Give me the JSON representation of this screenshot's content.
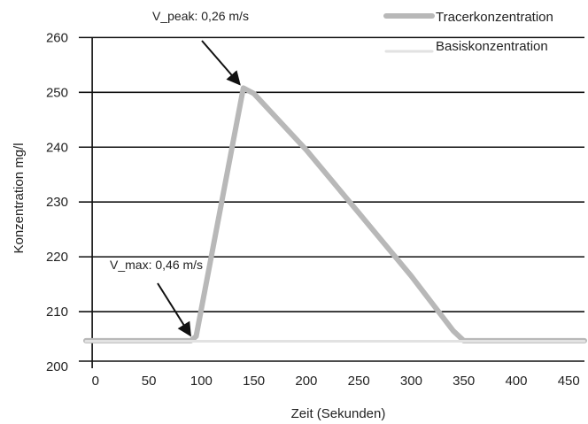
{
  "chart_data": {
    "type": "line",
    "title": "",
    "xlabel": "Zeit (Sekunden)",
    "ylabel": "Konzentration mg/l",
    "xlim": [
      -10,
      465
    ],
    "ylim": [
      200,
      262
    ],
    "x_ticks": [
      0,
      50,
      100,
      150,
      200,
      250,
      300,
      350,
      400,
      450
    ],
    "y_ticks": [
      200,
      210,
      220,
      230,
      240,
      250,
      260
    ],
    "grid": true,
    "legend_position": "top-right",
    "series": [
      {
        "name": "Tracerkonzentration",
        "color": "#b8b8b8",
        "points": [
          [
            -10,
            204.7
          ],
          [
            90,
            204.7
          ],
          [
            95,
            205.5
          ],
          [
            140,
            250.8
          ],
          [
            150,
            249.8
          ],
          [
            200,
            239.5
          ],
          [
            250,
            228
          ],
          [
            300,
            216.5
          ],
          [
            340,
            206.5
          ],
          [
            350,
            204.7
          ],
          [
            465,
            204.7
          ]
        ]
      },
      {
        "name": "Basiskonzentration",
        "color": "#e2e2e2",
        "points": [
          [
            -10,
            204.6
          ],
          [
            465,
            204.6
          ]
        ]
      }
    ],
    "annotations": [
      {
        "text": "V_peak: 0,26 m/s",
        "target": [
          140,
          250.8
        ]
      },
      {
        "text": "V_max: 0,46 m/s",
        "target": [
          93,
          205
        ]
      }
    ]
  }
}
